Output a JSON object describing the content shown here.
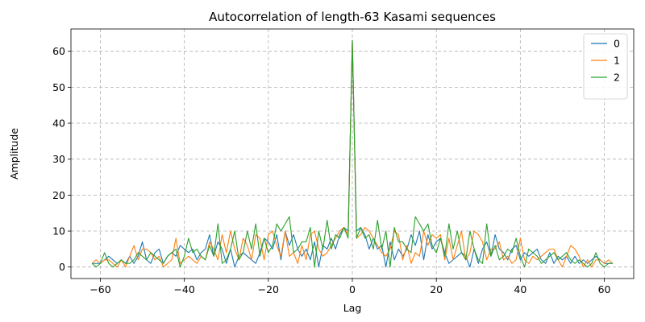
{
  "chart_data": {
    "type": "line",
    "title": "Autocorrelation of length-63 Kasami sequences",
    "xlabel": "Lag",
    "ylabel": "Amplitude",
    "xlim": [
      -67,
      67
    ],
    "ylim": [
      -3.2,
      66.2
    ],
    "x_ticks": [
      -60,
      -40,
      -20,
      0,
      20,
      40,
      60
    ],
    "y_ticks": [
      0,
      10,
      20,
      30,
      40,
      50,
      60
    ],
    "grid": true,
    "legend_position": "top-right",
    "x": [
      -62,
      -61,
      -60,
      -59,
      -58,
      -57,
      -56,
      -55,
      -54,
      -53,
      -52,
      -51,
      -50,
      -49,
      -48,
      -47,
      -46,
      -45,
      -44,
      -43,
      -42,
      -41,
      -40,
      -39,
      -38,
      -37,
      -36,
      -35,
      -34,
      -33,
      -32,
      -31,
      -30,
      -29,
      -28,
      -27,
      -26,
      -25,
      -24,
      -23,
      -22,
      -21,
      -20,
      -19,
      -18,
      -17,
      -16,
      -15,
      -14,
      -13,
      -12,
      -11,
      -10,
      -9,
      -8,
      -7,
      -6,
      -5,
      -4,
      -3,
      -2,
      -1,
      0,
      1,
      2,
      3,
      4,
      5,
      6,
      7,
      8,
      9,
      10,
      11,
      12,
      13,
      14,
      15,
      16,
      17,
      18,
      19,
      20,
      21,
      22,
      23,
      24,
      25,
      26,
      27,
      28,
      29,
      30,
      31,
      32,
      33,
      34,
      35,
      36,
      37,
      38,
      39,
      40,
      41,
      42,
      43,
      44,
      45,
      46,
      47,
      48,
      49,
      50,
      51,
      52,
      53,
      54,
      55,
      56,
      57,
      58,
      59,
      60,
      61,
      62
    ],
    "series": [
      {
        "name": "0",
        "color": "#1f77b4",
        "values": [
          1,
          1,
          1,
          2,
          3,
          2,
          1,
          2,
          1,
          3,
          1,
          3,
          7,
          2,
          1,
          4,
          5,
          1,
          3,
          4,
          3,
          6,
          5,
          4,
          5,
          2,
          4,
          5,
          9,
          3,
          7,
          5,
          1,
          5,
          0,
          3,
          4,
          3,
          2,
          1,
          4,
          8,
          7,
          5,
          9,
          2,
          10,
          6,
          9,
          5,
          3,
          5,
          2,
          7,
          0,
          6,
          5,
          8,
          5,
          9,
          11,
          10,
          63,
          10,
          11,
          9,
          5,
          8,
          5,
          6,
          0,
          7,
          2,
          5,
          3,
          5,
          9,
          6,
          10,
          2,
          9,
          5,
          7,
          8,
          4,
          1,
          2,
          3,
          4,
          3,
          0,
          5,
          1,
          5,
          7,
          3,
          9,
          5,
          4,
          2,
          5,
          6,
          2,
          4,
          3,
          4,
          5,
          2,
          1,
          4,
          1,
          3,
          2,
          3,
          1,
          3,
          1,
          2,
          1,
          2,
          3,
          2,
          1,
          1,
          1
        ]
      },
      {
        "name": "1",
        "color": "#ff7f0e",
        "values": [
          1,
          2,
          1,
          2,
          2,
          1,
          0,
          2,
          0,
          3,
          6,
          2,
          5,
          5,
          4,
          2,
          3,
          0,
          1,
          2,
          8,
          1,
          2,
          3,
          2,
          1,
          3,
          2,
          7,
          5,
          2,
          9,
          4,
          10,
          5,
          2,
          8,
          6,
          2,
          9,
          8,
          2,
          9,
          10,
          6,
          3,
          10,
          3,
          4,
          1,
          6,
          2,
          9,
          10,
          5,
          3,
          4,
          6,
          8,
          10,
          11,
          9,
          63,
          8,
          9,
          11,
          10,
          8,
          6,
          4,
          3,
          5,
          10,
          9,
          2,
          6,
          1,
          4,
          3,
          10,
          6,
          9,
          8,
          9,
          2,
          8,
          2,
          6,
          10,
          2,
          4,
          10,
          9,
          7,
          2,
          5,
          5,
          7,
          2,
          3,
          1,
          2,
          8,
          2,
          1,
          3,
          2,
          3,
          4,
          5,
          5,
          2,
          0,
          3,
          6,
          5,
          3,
          0,
          2,
          0,
          2,
          2,
          1,
          2,
          1
        ]
      },
      {
        "name": "2",
        "color": "#2ca02c",
        "values": [
          1,
          0,
          1,
          4,
          1,
          0,
          1,
          2,
          1,
          1,
          2,
          4,
          3,
          2,
          4,
          3,
          2,
          1,
          3,
          4,
          5,
          0,
          3,
          8,
          4,
          5,
          3,
          2,
          6,
          3,
          12,
          1,
          2,
          5,
          10,
          2,
          4,
          10,
          5,
          12,
          3,
          8,
          4,
          6,
          12,
          10,
          12,
          14,
          4,
          5,
          7,
          7,
          11,
          0,
          10,
          5,
          13,
          5,
          9,
          8,
          11,
          8,
          63,
          8,
          11,
          8,
          9,
          5,
          13,
          5,
          10,
          0,
          11,
          7,
          7,
          5,
          4,
          14,
          12,
          10,
          12,
          6,
          4,
          8,
          3,
          12,
          5,
          10,
          4,
          2,
          10,
          5,
          2,
          1,
          12,
          3,
          6,
          2,
          3,
          5,
          4,
          8,
          3,
          0,
          5,
          4,
          3,
          1,
          2,
          3,
          4,
          2,
          3,
          4,
          2,
          1,
          2,
          1,
          0,
          1,
          4,
          1,
          0,
          1,
          1
        ]
      }
    ]
  }
}
